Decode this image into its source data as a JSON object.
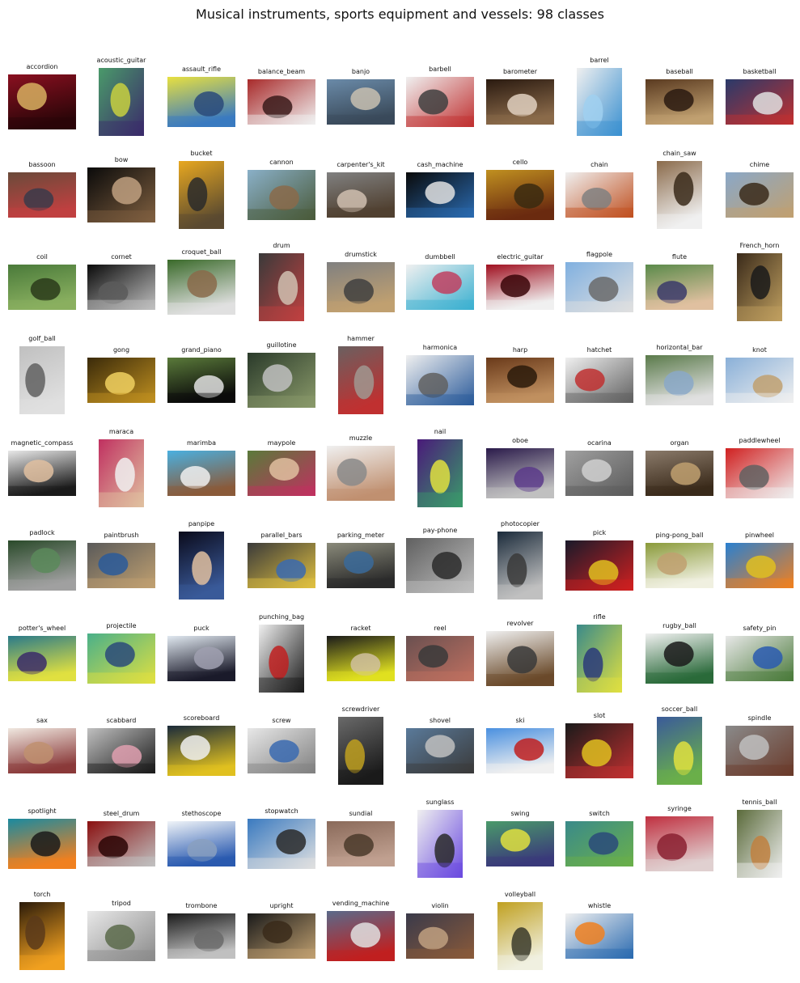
{
  "title": "Musical instruments, sports equipment and vessels: 98 classes",
  "classes": [
    {
      "label": "accordion",
      "colors": [
        "#8a1020",
        "#2a0508",
        "#d8b060"
      ]
    },
    {
      "label": "acoustic_guitar",
      "colors": [
        "#4a9a6a",
        "#3a2a6a",
        "#c8d040"
      ]
    },
    {
      "label": "assault_rifle",
      "colors": [
        "#e8e040",
        "#3a7ac0",
        "#2a4a7a"
      ]
    },
    {
      "label": "balance_beam",
      "colors": [
        "#a82a2a",
        "#f0f0f0",
        "#3a1a1a"
      ]
    },
    {
      "label": "banjo",
      "colors": [
        "#6a8aa8",
        "#3a4a5a",
        "#c8c0b0"
      ]
    },
    {
      "label": "barbell",
      "colors": [
        "#f0f0f0",
        "#c03030",
        "#404040"
      ]
    },
    {
      "label": "barometer",
      "colors": [
        "#2a1a10",
        "#8a6a4a",
        "#e0d0c0"
      ]
    },
    {
      "label": "barrel",
      "colors": [
        "#f0f0f0",
        "#3a90d0",
        "#a0d0f0"
      ]
    },
    {
      "label": "baseball",
      "colors": [
        "#5a3a20",
        "#c0a070",
        "#2a1a10"
      ]
    },
    {
      "label": "basketball",
      "colors": [
        "#2a3a6a",
        "#c03030",
        "#e0e0e0"
      ]
    },
    {
      "label": "bassoon",
      "colors": [
        "#6a4a3a",
        "#c04040",
        "#3a3a4a"
      ]
    },
    {
      "label": "bow",
      "colors": [
        "#0a0a0a",
        "#806040",
        "#c0a080"
      ]
    },
    {
      "label": "bucket",
      "colors": [
        "#e8a820",
        "#5a4a30",
        "#2a2a2a"
      ]
    },
    {
      "label": "cannon",
      "colors": [
        "#8ab0c8",
        "#4a5a3a",
        "#8a6a4a"
      ]
    },
    {
      "label": "carpenter's_kit",
      "colors": [
        "#808080",
        "#504030",
        "#d0c0b0"
      ]
    },
    {
      "label": "cash_machine",
      "colors": [
        "#0a0a0a",
        "#2a6ab0",
        "#e0e0e0"
      ]
    },
    {
      "label": "cello",
      "colors": [
        "#c09020",
        "#6a2a10",
        "#3a2a10"
      ]
    },
    {
      "label": "chain",
      "colors": [
        "#f0f0f0",
        "#c05020",
        "#808080"
      ]
    },
    {
      "label": "chain_saw",
      "colors": [
        "#8a6a4a",
        "#f0f0f0",
        "#3a2a1a"
      ]
    },
    {
      "label": "chime",
      "colors": [
        "#8aa8c8",
        "#c0a070",
        "#3a2a1a"
      ]
    },
    {
      "label": "coil",
      "colors": [
        "#4a7a3a",
        "#8ab060",
        "#2a3a1a"
      ]
    },
    {
      "label": "cornet",
      "colors": [
        "#0a0a0a",
        "#c0c0c0",
        "#5a5a5a"
      ]
    },
    {
      "label": "croquet_ball",
      "colors": [
        "#3a6a2a",
        "#e0e0e0",
        "#8a6a4a"
      ]
    },
    {
      "label": "drum",
      "colors": [
        "#3a3a3a",
        "#c04040",
        "#d0c0b0"
      ]
    },
    {
      "label": "drumstick",
      "colors": [
        "#808080",
        "#c0a070",
        "#404040"
      ]
    },
    {
      "label": "dumbbell",
      "colors": [
        "#f0f0f0",
        "#3ab0d0",
        "#c04060"
      ]
    },
    {
      "label": "electric_guitar",
      "colors": [
        "#a01020",
        "#f0f0f0",
        "#3a0508"
      ]
    },
    {
      "label": "flagpole",
      "colors": [
        "#80b0e0",
        "#e0e0e0",
        "#6a6a6a"
      ]
    },
    {
      "label": "flute",
      "colors": [
        "#5a8a4a",
        "#e0c0a0",
        "#3a3a6a"
      ]
    },
    {
      "label": "French_horn",
      "colors": [
        "#3a2a1a",
        "#c0a060",
        "#1a1a1a"
      ]
    },
    {
      "label": "golf_ball",
      "colors": [
        "#c0c0c0",
        "#e0e0e0",
        "#606060"
      ]
    },
    {
      "label": "gong",
      "colors": [
        "#3a2a0a",
        "#c09020",
        "#f0d060"
      ]
    },
    {
      "label": "grand_piano",
      "colors": [
        "#5a7a3a",
        "#0a0a0a",
        "#e0e0e0"
      ]
    },
    {
      "label": "guillotine",
      "colors": [
        "#2a3a2a",
        "#8a9a6a",
        "#c0c0c0"
      ]
    },
    {
      "label": "hammer",
      "colors": [
        "#6a6060",
        "#c03030",
        "#a09890"
      ]
    },
    {
      "label": "harmonica",
      "colors": [
        "#f0f0f0",
        "#2a5a9a",
        "#606060"
      ]
    },
    {
      "label": "harp",
      "colors": [
        "#6a3a1a",
        "#c09060",
        "#2a1a0a"
      ]
    },
    {
      "label": "hatchet",
      "colors": [
        "#f0f0f0",
        "#606060",
        "#c03030"
      ]
    },
    {
      "label": "horizontal_bar",
      "colors": [
        "#5a7a4a",
        "#e0e0e0",
        "#8aa8c8"
      ]
    },
    {
      "label": "knot",
      "colors": [
        "#8ab0d8",
        "#f0f0f0",
        "#c0a070"
      ]
    },
    {
      "label": "magnetic_compass",
      "colors": [
        "#e8e8e8",
        "#1a1a1a",
        "#e0c0a0"
      ]
    },
    {
      "label": "maraca",
      "colors": [
        "#c03060",
        "#e0c0a0",
        "#f0f0f0"
      ]
    },
    {
      "label": "marimba",
      "colors": [
        "#4ab0e0",
        "#8a5a3a",
        "#f0f0f0"
      ]
    },
    {
      "label": "maypole",
      "colors": [
        "#5a7a3a",
        "#c03060",
        "#e0c0a0"
      ]
    },
    {
      "label": "muzzle",
      "colors": [
        "#f0f0f0",
        "#c09070",
        "#8a8a8a"
      ]
    },
    {
      "label": "nail",
      "colors": [
        "#4a1a7a",
        "#3a9a6a",
        "#e0e040"
      ]
    },
    {
      "label": "oboe",
      "colors": [
        "#2a1a4a",
        "#c0c0c0",
        "#5a3a8a"
      ]
    },
    {
      "label": "ocarina",
      "colors": [
        "#a0a0a0",
        "#5a5a5a",
        "#d0d0d0"
      ]
    },
    {
      "label": "organ",
      "colors": [
        "#8a7a6a",
        "#3a2a1a",
        "#c0a070"
      ]
    },
    {
      "label": "paddlewheel",
      "colors": [
        "#d02020",
        "#f0f0f0",
        "#606060"
      ]
    },
    {
      "label": "padlock",
      "colors": [
        "#2a4a2a",
        "#a0a0a0",
        "#5a8a5a"
      ]
    },
    {
      "label": "paintbrush",
      "colors": [
        "#5a5a5a",
        "#c0a070",
        "#2a5a9a"
      ]
    },
    {
      "label": "panpipe",
      "colors": [
        "#0a0a1a",
        "#3a5a9a",
        "#e0c0a0"
      ]
    },
    {
      "label": "parallel_bars",
      "colors": [
        "#3a3a3a",
        "#e0c040",
        "#3a6ab0"
      ]
    },
    {
      "label": "parking_meter",
      "colors": [
        "#8a8a7a",
        "#2a2a2a",
        "#3a6a9a"
      ]
    },
    {
      "label": "pay-phone",
      "colors": [
        "#606060",
        "#c0c0c0",
        "#2a2a2a"
      ]
    },
    {
      "label": "photocopier",
      "colors": [
        "#1a2a3a",
        "#c0c0c0",
        "#3a3a3a"
      ]
    },
    {
      "label": "pick",
      "colors": [
        "#1a1a2a",
        "#d02020",
        "#e0c020"
      ]
    },
    {
      "label": "ping-pong_ball",
      "colors": [
        "#8a9a3a",
        "#f0f0e0",
        "#c0a070"
      ]
    },
    {
      "label": "pinwheel",
      "colors": [
        "#2a80d0",
        "#f08020",
        "#e0c020"
      ]
    },
    {
      "label": "potter's_wheel",
      "colors": [
        "#2a7a8a",
        "#e0e040",
        "#3a2a6a"
      ]
    },
    {
      "label": "projectile",
      "colors": [
        "#4ab08a",
        "#e0e040",
        "#2a4a7a"
      ]
    },
    {
      "label": "puck",
      "colors": [
        "#e0e8f0",
        "#1a1a2a",
        "#a0a0b0"
      ]
    },
    {
      "label": "punching_bag",
      "colors": [
        "#f0f0f0",
        "#1a1a1a",
        "#c02020"
      ]
    },
    {
      "label": "racket",
      "colors": [
        "#1a1a1a",
        "#e0e020",
        "#d0c0a0"
      ]
    },
    {
      "label": "reel",
      "colors": [
        "#6a5050",
        "#c07060",
        "#3a3a3a"
      ]
    },
    {
      "label": "revolver",
      "colors": [
        "#f0f0f0",
        "#6a4a2a",
        "#3a3a3a"
      ]
    },
    {
      "label": "rifle",
      "colors": [
        "#3a8a8a",
        "#e0e040",
        "#2a3a7a"
      ]
    },
    {
      "label": "rugby_ball",
      "colors": [
        "#f0f0f0",
        "#2a6a3a",
        "#1a1a1a"
      ]
    },
    {
      "label": "safety_pin",
      "colors": [
        "#e8e8e8",
        "#4a7a3a",
        "#2a5ab0"
      ]
    },
    {
      "label": "sax",
      "colors": [
        "#f0e8e0",
        "#8a3a3a",
        "#c09070"
      ]
    },
    {
      "label": "scabbard",
      "colors": [
        "#c0c0c0",
        "#1a1a1a",
        "#e0a0b0"
      ]
    },
    {
      "label": "scoreboard",
      "colors": [
        "#1a2a3a",
        "#e0c020",
        "#f0f0f0"
      ]
    },
    {
      "label": "screw",
      "colors": [
        "#e8e8e8",
        "#808080",
        "#3a6ab0"
      ]
    },
    {
      "label": "screwdriver",
      "colors": [
        "#6a6a6a",
        "#1a1a1a",
        "#c0a020"
      ]
    },
    {
      "label": "shovel",
      "colors": [
        "#5a7a9a",
        "#3a3a3a",
        "#c0c0c0"
      ]
    },
    {
      "label": "ski",
      "colors": [
        "#4a90e0",
        "#f0f0f0",
        "#c02020"
      ]
    },
    {
      "label": "slot",
      "colors": [
        "#1a1a1a",
        "#c03030",
        "#e0c020"
      ]
    },
    {
      "label": "soccer_ball",
      "colors": [
        "#3a5a9a",
        "#6ab04a",
        "#e0e040"
      ]
    },
    {
      "label": "spindle",
      "colors": [
        "#8a8a8a",
        "#6a3a2a",
        "#c0c0c0"
      ]
    },
    {
      "label": "spotlight",
      "colors": [
        "#1a8aa0",
        "#f08020",
        "#1a1a1a"
      ]
    },
    {
      "label": "steel_drum",
      "colors": [
        "#8a1010",
        "#c0c0c0",
        "#2a0505"
      ]
    },
    {
      "label": "stethoscope",
      "colors": [
        "#f0f4f8",
        "#2a5ab0",
        "#8aa0c0"
      ]
    },
    {
      "label": "stopwatch",
      "colors": [
        "#3a7ac0",
        "#e0e0e0",
        "#2a2a2a"
      ]
    },
    {
      "label": "sundial",
      "colors": [
        "#8a6a5a",
        "#c0a090",
        "#4a3a2a"
      ]
    },
    {
      "label": "sunglass",
      "colors": [
        "#f0f0f0",
        "#6a4ae0",
        "#2a2a2a"
      ]
    },
    {
      "label": "swing",
      "colors": [
        "#4a9a6a",
        "#3a3a7a",
        "#e0e040"
      ]
    },
    {
      "label": "switch",
      "colors": [
        "#3a8a8a",
        "#6ab04a",
        "#2a4a7a"
      ]
    },
    {
      "label": "syringe",
      "colors": [
        "#c03040",
        "#e0d0d0",
        "#8a2030"
      ]
    },
    {
      "label": "tennis_ball",
      "colors": [
        "#5a6a3a",
        "#f0f0f0",
        "#c08040"
      ]
    },
    {
      "label": "torch",
      "colors": [
        "#2a1a0a",
        "#f0a020",
        "#5a3a1a"
      ]
    },
    {
      "label": "tripod",
      "colors": [
        "#e8e8e8",
        "#8a8a8a",
        "#5a6a4a"
      ]
    },
    {
      "label": "trombone",
      "colors": [
        "#1a1a1a",
        "#c0c0c0",
        "#6a6a6a"
      ]
    },
    {
      "label": "upright",
      "colors": [
        "#1a1a1a",
        "#c0a070",
        "#3a2a1a"
      ]
    },
    {
      "label": "vending_machine",
      "colors": [
        "#5a6a8a",
        "#c02020",
        "#e0e0e0"
      ]
    },
    {
      "label": "violin",
      "colors": [
        "#3a3a4a",
        "#8a5a3a",
        "#c0a080"
      ]
    },
    {
      "label": "volleyball",
      "colors": [
        "#c0a020",
        "#f0f0e0",
        "#3a3a2a"
      ]
    },
    {
      "label": "whistle",
      "colors": [
        "#f0f0f0",
        "#2a6ab0",
        "#f08020"
      ]
    }
  ]
}
